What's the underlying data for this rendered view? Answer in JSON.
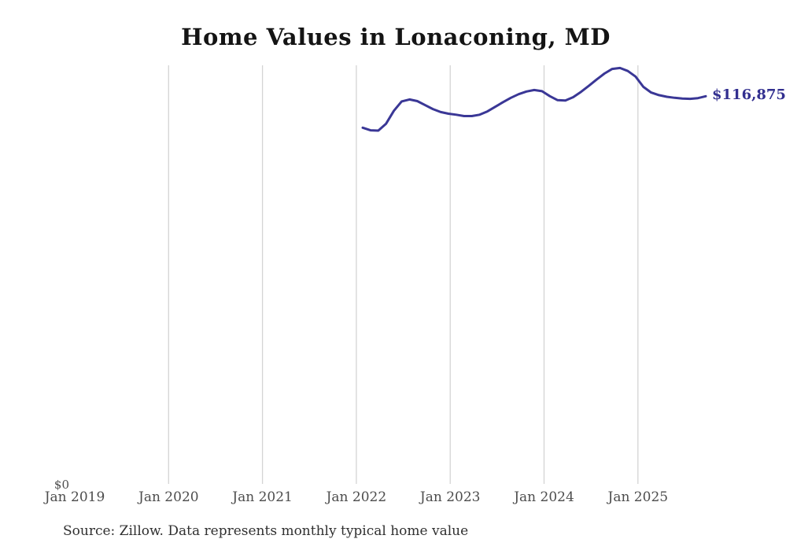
{
  "title": "Home Values in Lonaconing, MD",
  "source_note": "Source: Zillow. Data represents monthly typical home value",
  "colors": {
    "line": "#3a3796",
    "end_label": "#322f8f",
    "gridline": "#d4d4d4",
    "tick_text": "#4d4d4d",
    "title_text": "#141414"
  },
  "chart_data": {
    "type": "line",
    "title": "Home Values in Lonaconing, MD",
    "xlabel": "",
    "ylabel": "",
    "ylim": [
      0,
      126200
    ],
    "y_zero_label": "$0",
    "end_label": "$116,875",
    "end_value": 116875,
    "grid": "vertical-only",
    "legend": "none",
    "x_axis_ticks": [
      "Jan 2019",
      "Jan 2020",
      "Jan 2021",
      "Jan 2022",
      "Jan 2023",
      "Jan 2024",
      "Jan 2025"
    ],
    "gridline_ticks": [
      "Jan 2020",
      "Jan 2021",
      "Jan 2022",
      "Jan 2023",
      "Jan 2024",
      "Jan 2025"
    ],
    "series_name": "Typical home value (monthly)",
    "x": [
      "2022-01",
      "2022-02",
      "2022-03",
      "2022-04",
      "2022-05",
      "2022-06",
      "2022-07",
      "2022-08",
      "2022-09",
      "2022-10",
      "2022-11",
      "2022-12",
      "2023-01",
      "2023-02",
      "2023-03",
      "2023-04",
      "2023-05",
      "2023-06",
      "2023-07",
      "2023-08",
      "2023-09",
      "2023-10",
      "2023-11",
      "2023-12",
      "2024-01",
      "2024-02",
      "2024-03",
      "2024-04",
      "2024-05",
      "2024-06",
      "2024-07",
      "2024-08",
      "2024-09",
      "2024-10",
      "2024-11",
      "2024-12",
      "2025-01",
      "2025-02",
      "2025-03",
      "2025-04",
      "2025-05",
      "2025-06",
      "2025-07",
      "2025-08",
      "2025-09"
    ],
    "values": [
      107400,
      106600,
      106500,
      108600,
      112500,
      115300,
      115900,
      115400,
      114200,
      113000,
      112100,
      111600,
      111300,
      110900,
      110900,
      111300,
      112300,
      113700,
      115100,
      116400,
      117500,
      118300,
      118750,
      118400,
      116900,
      115700,
      115600,
      116600,
      118200,
      120000,
      121900,
      123700,
      125100,
      125400,
      124500,
      122800,
      119700,
      118000,
      117200,
      116700,
      116400,
      116200,
      116100,
      116300,
      116875
    ]
  }
}
